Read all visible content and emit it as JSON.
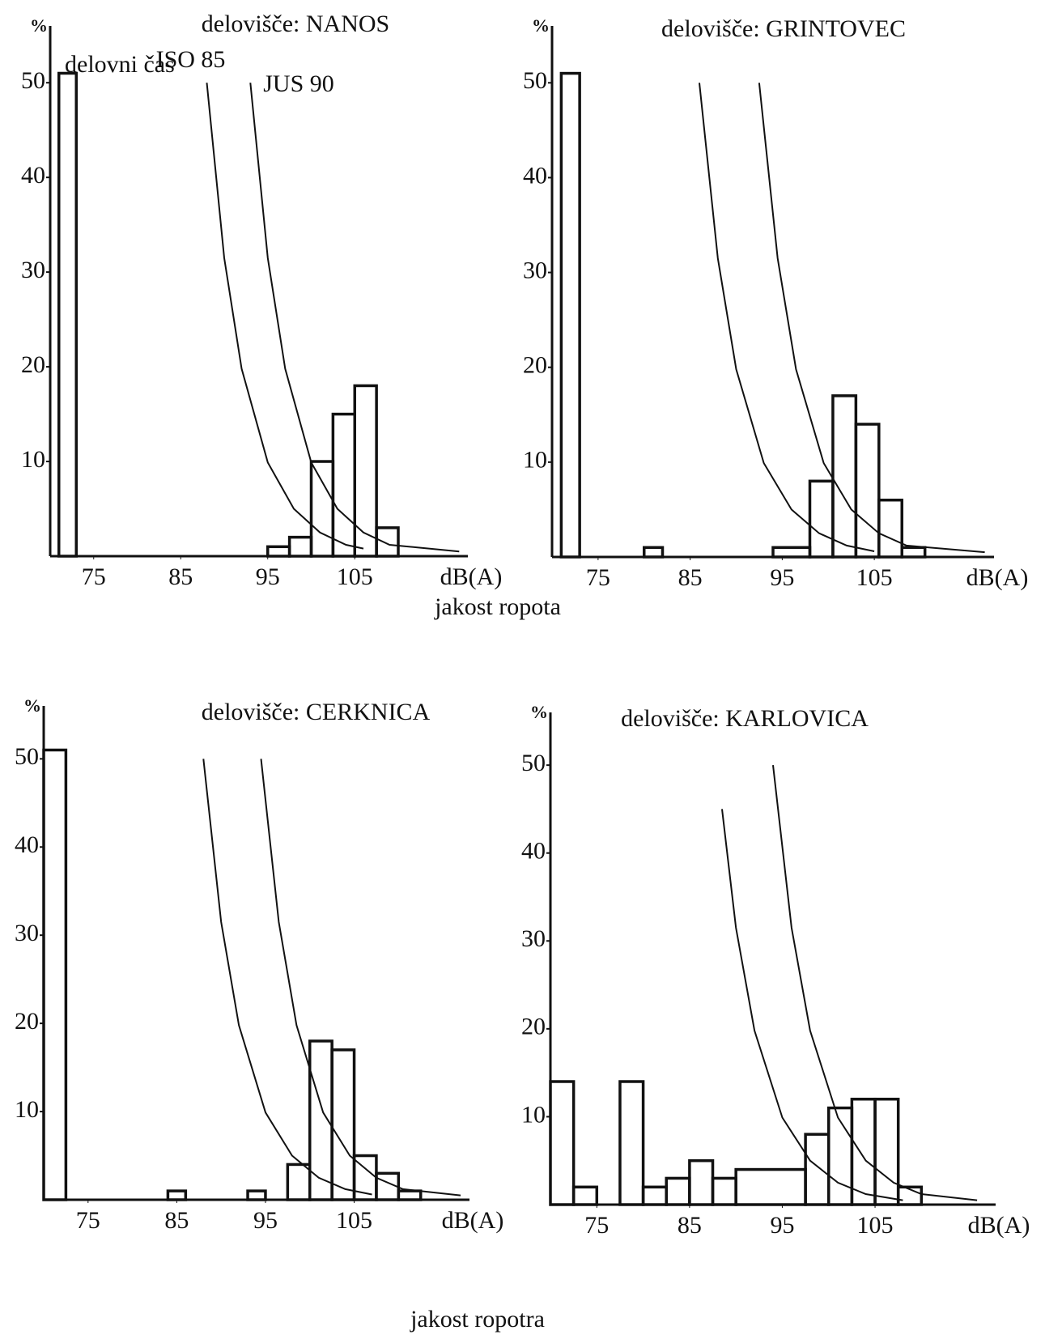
{
  "chart_data": [
    {
      "type": "histogram",
      "title": "delovišče: NANOS",
      "ylabel": "%",
      "xlabel": "dB(A)",
      "axis_caption": "jakost ropota",
      "annotation": "delovni čas",
      "bins": [
        71,
        73,
        95,
        97.5,
        100,
        102.5,
        105,
        107.5,
        110
      ],
      "counts": [
        51,
        0,
        1,
        2,
        10,
        15,
        18,
        3
      ],
      "series": [
        {
          "name": "ISO 85",
          "color": "#111111",
          "x": [
            88,
            90,
            92,
            95,
            98,
            101,
            104,
            106
          ],
          "values": [
            50,
            31.5,
            19.8,
            9.9,
            5,
            2.5,
            1.2,
            0.8
          ]
        },
        {
          "name": "JUS 90",
          "color": "#111111",
          "x": [
            93,
            95,
            97,
            100,
            103,
            106,
            109,
            117
          ],
          "values": [
            50,
            31.5,
            19.8,
            9.9,
            5,
            2.5,
            1.2,
            0.5
          ]
        }
      ],
      "xlim": [
        70,
        118
      ],
      "ylim": [
        0,
        56
      ],
      "xticks": [
        75,
        85,
        95,
        105
      ],
      "yticks": [
        10,
        20,
        30,
        40,
        50
      ],
      "grid": false
    },
    {
      "type": "histogram",
      "title": "delovišče: GRINTOVEC",
      "ylabel": "%",
      "xlabel": "dB(A)",
      "bins": [
        71,
        73,
        80,
        82,
        94,
        98,
        100.5,
        103,
        105.5,
        108,
        110.5
      ],
      "counts": [
        51,
        0,
        1,
        0,
        1,
        8,
        17,
        14,
        6,
        1
      ],
      "series": [
        {
          "color": "#111111",
          "x": [
            86,
            88,
            90,
            93,
            96,
            99,
            102,
            105
          ],
          "values": [
            50,
            31.5,
            19.8,
            9.9,
            5,
            2.5,
            1.2,
            0.6
          ]
        },
        {
          "color": "#111111",
          "x": [
            92.5,
            94.5,
            96.5,
            99.5,
            102.5,
            105.5,
            108.5,
            117
          ],
          "values": [
            50,
            31.5,
            19.8,
            9.9,
            5,
            2.5,
            1.2,
            0.5
          ]
        }
      ],
      "xlim": [
        70,
        118
      ],
      "ylim": [
        0,
        56
      ],
      "xticks": [
        75,
        85,
        95,
        105
      ],
      "yticks": [
        10,
        20,
        30,
        40,
        50
      ],
      "grid": false
    },
    {
      "type": "histogram",
      "title": "delovišče: CERKNICA",
      "ylabel": "%",
      "xlabel": "dB(A)",
      "axis_caption": "jakost ropotra",
      "bins": [
        70,
        72.5,
        84,
        86,
        93,
        95,
        97.5,
        100,
        102.5,
        105,
        107.5,
        110,
        112.5
      ],
      "counts": [
        51,
        0,
        1,
        0,
        1,
        0,
        4,
        18,
        17,
        5,
        3,
        1
      ],
      "series": [
        {
          "color": "#111111",
          "x": [
            88,
            90,
            92,
            95,
            98,
            101,
            104,
            107
          ],
          "values": [
            50,
            31.5,
            19.8,
            9.9,
            5,
            2.5,
            1.2,
            0.6
          ]
        },
        {
          "color": "#111111",
          "x": [
            94.5,
            96.5,
            98.5,
            101.5,
            104.5,
            107.5,
            110.5,
            117
          ],
          "values": [
            50,
            31.5,
            19.8,
            9.9,
            5,
            2.5,
            1.2,
            0.5
          ]
        }
      ],
      "xlim": [
        70,
        118
      ],
      "ylim": [
        0,
        56
      ],
      "xticks": [
        75,
        85,
        95,
        105
      ],
      "yticks": [
        10,
        20,
        30,
        40,
        50
      ],
      "grid": false
    },
    {
      "type": "histogram",
      "title": "delovišče: KARLOVICA",
      "ylabel": "%",
      "xlabel": "dB(A)",
      "bins": [
        70,
        72.5,
        75,
        77.5,
        80,
        82.5,
        85,
        87.5,
        90,
        97.5,
        100,
        102.5,
        105,
        107.5,
        110
      ],
      "counts": [
        14,
        2,
        0,
        14,
        2,
        3,
        5,
        3,
        4,
        8,
        11,
        12,
        12,
        2
      ],
      "series": [
        {
          "color": "#111111",
          "x": [
            88.5,
            90,
            92,
            95,
            98,
            101,
            104,
            108
          ],
          "values": [
            45,
            31.5,
            19.8,
            9.9,
            5,
            2.5,
            1.2,
            0.5
          ]
        },
        {
          "color": "#111111",
          "x": [
            94,
            96,
            98,
            101,
            104,
            107,
            110,
            116
          ],
          "values": [
            50,
            31.5,
            19.8,
            9.9,
            5,
            2.5,
            1.2,
            0.5
          ]
        }
      ],
      "xlim": [
        70,
        118
      ],
      "ylim": [
        0,
        56
      ],
      "xticks": [
        75,
        85,
        95,
        105
      ],
      "yticks": [
        10,
        20,
        30,
        40,
        50
      ],
      "grid": false
    }
  ]
}
